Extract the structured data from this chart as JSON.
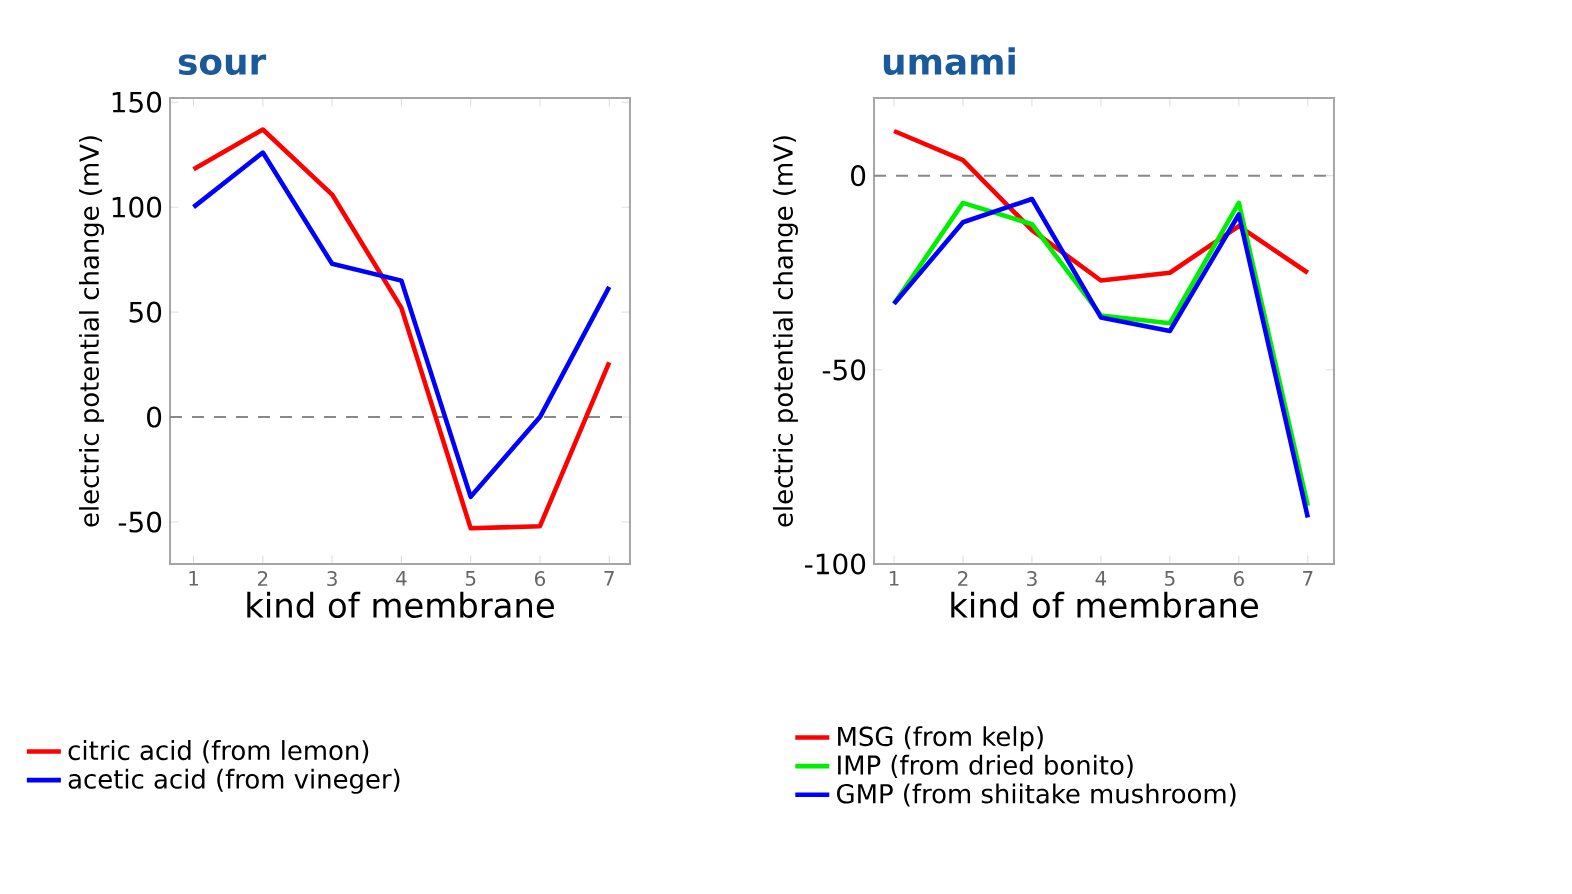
{
  "chart_data": [
    {
      "type": "line",
      "title": "sour",
      "xlabel": "kind of membrane",
      "ylabel": "electric potential change (mV)",
      "x": [
        1,
        2,
        3,
        4,
        5,
        6,
        7
      ],
      "xlim": [
        0.66,
        7.3
      ],
      "xticks": [
        1,
        2,
        3,
        4,
        5,
        6,
        7
      ],
      "ylim": [
        -70,
        152
      ],
      "yticks": [
        -50,
        0,
        50,
        100,
        150
      ],
      "series": [
        {
          "name": "citric acid (from lemon)",
          "color": "#ff0000",
          "values": [
            118,
            137,
            106,
            52,
            -53,
            -52,
            26
          ]
        },
        {
          "name": "acetic acid (from vineger)",
          "color": "#0000ff",
          "values": [
            100,
            126,
            73,
            65,
            -38,
            0,
            62
          ]
        }
      ],
      "ref_lines": [
        {
          "axis": "y",
          "value": 0,
          "color": "#888888",
          "line_style": "dashed"
        }
      ],
      "legend": "bottom",
      "grid": false,
      "marker": "none",
      "line_style": "solid"
    },
    {
      "type": "line",
      "title": "umami",
      "xlabel": "kind of membrane",
      "ylabel": "electric potential change (mV)",
      "x": [
        1,
        2,
        3,
        4,
        5,
        6,
        7
      ],
      "xlim": [
        0.71,
        7.38
      ],
      "xticks": [
        1,
        2,
        3,
        4,
        5,
        6,
        7
      ],
      "ylim": [
        -100,
        20
      ],
      "yticks": [
        -100,
        -50,
        0
      ],
      "series": [
        {
          "name": "MSG (from kelp)",
          "color": "#ff0000",
          "values": [
            11.5,
            4,
            -14,
            -27,
            -25,
            -13,
            -25
          ]
        },
        {
          "name": "IMP  (from dried bonito)",
          "color": "#00ee00",
          "values": [
            -33,
            -7,
            -12.5,
            -36,
            -38,
            -7,
            -85
          ]
        },
        {
          "name": "GMP (from shiitake mushroom)",
          "color": "#0000ff",
          "values": [
            -33,
            -12,
            -6,
            -36.5,
            -40,
            -10,
            -88
          ]
        }
      ],
      "ref_lines": [
        {
          "axis": "y",
          "value": 0,
          "color": "#888888",
          "line_style": "dashed"
        }
      ],
      "legend": "bottom",
      "grid": false,
      "marker": "none",
      "line_style": "solid"
    }
  ]
}
